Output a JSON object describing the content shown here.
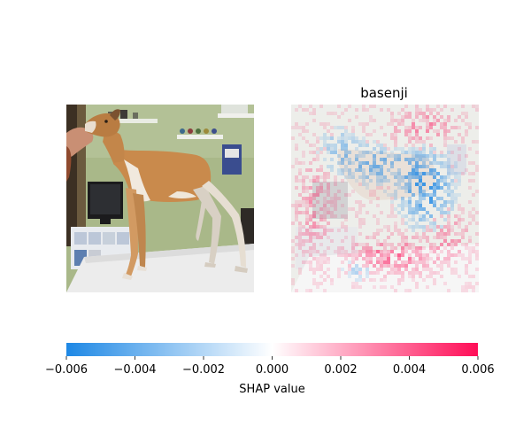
{
  "chart_data": {
    "type": "heatmap",
    "panels": [
      {
        "kind": "input-image",
        "subject": "dog standing on a table in a room with shelves and a monitor",
        "title": ""
      },
      {
        "kind": "shap-heatmap",
        "title": "basenji",
        "blue_regions": "dog body, neck and right side (negative SHAP)",
        "red_regions": "scattered background, lower area (positive SHAP)"
      }
    ],
    "colorbar": {
      "label": "SHAP value",
      "min": -0.006,
      "max": 0.006,
      "ticks": [
        -0.006,
        -0.004,
        -0.002,
        0.0,
        0.002,
        0.004,
        0.006
      ],
      "tick_labels": [
        "−0.006",
        "−0.004",
        "−0.002",
        "0.000",
        "0.002",
        "0.004",
        "0.006"
      ],
      "colors": {
        "negative": "#1e88e5",
        "zero": "#ffffff",
        "positive": "#ff0d57"
      }
    }
  }
}
